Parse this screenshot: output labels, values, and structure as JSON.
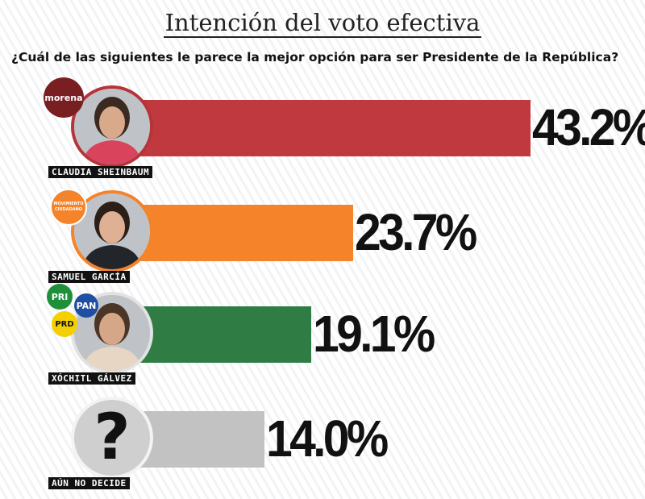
{
  "title": "Intención del voto efectiva",
  "question": "¿Cuál de las siguientes le parece la mejor opción para ser Presidente de la República?",
  "chart_data": {
    "type": "bar",
    "orientation": "horizontal",
    "categories": [
      "CLAUDIA SHEINBAUM",
      "SAMUEL GARCÍA",
      "XÓCHITL GÁLVEZ",
      "AÚN NO DECIDE"
    ],
    "values": [
      43.2,
      23.7,
      19.1,
      14.0
    ],
    "value_labels": [
      "43.2%",
      "23.7%",
      "19.1%",
      "14.0%"
    ],
    "colors": [
      "#c0393f",
      "#f5832a",
      "#2f7d44",
      "#c2c2c2"
    ],
    "xlim": [
      0,
      100
    ]
  },
  "logos": {
    "morena": "morena",
    "mc": "MOVIMIENTO CIUDADANO",
    "pri": "PRI",
    "pan": "PAN",
    "prd": "PRD"
  },
  "icons": {
    "undecided": "?"
  }
}
